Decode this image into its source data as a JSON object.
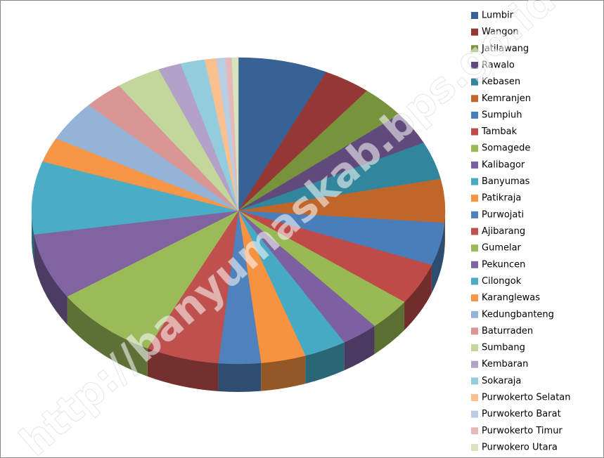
{
  "chart_data": {
    "type": "pie3d",
    "categories": [
      "Lumbir",
      "Wangon",
      "Jatilawang",
      "Rawalo",
      "Kebasen",
      "Kemranjen",
      "Sumpiuh",
      "Tambak",
      "Somagede",
      "Kalibagor",
      "Banyumas",
      "Patikraja",
      "Purwojati",
      "Ajibarang",
      "Gumelar",
      "Pekuncen",
      "Cilongok",
      "Karanglewas",
      "Kedungbanteng",
      "Baturraden",
      "Sumbang",
      "Kembaran",
      "Sokaraja",
      "Purwokerto Selatan",
      "Purwokerto Barat",
      "Purwokerto Timur",
      "Purwokero Utara"
    ],
    "values": [
      7.0,
      3.7,
      3.5,
      3.5,
      4.0,
      4.6,
      4.5,
      4.4,
      3.4,
      2.9,
      3.3,
      3.5,
      3.3,
      5.7,
      8.3,
      7.0,
      7.7,
      2.6,
      4.3,
      3.1,
      3.5,
      1.8,
      1.9,
      0.9,
      0.7,
      0.5,
      0.5
    ],
    "colors": [
      "#386296",
      "#953735",
      "#77933c",
      "#604a7b",
      "#31859c",
      "#c0662a",
      "#4a7ebb",
      "#be4b48",
      "#98b954",
      "#7d60a0",
      "#46aac5",
      "#f69240",
      "#4f81bd",
      "#c0504d",
      "#9bbb59",
      "#8064a2",
      "#4bacc6",
      "#f79646",
      "#95b3d7",
      "#d99694",
      "#c3d69b",
      "#b3a2c7",
      "#93cddd",
      "#fac090",
      "#b9cde5",
      "#e6b9b8",
      "#d7e4bd"
    ],
    "legend": "right",
    "watermark": "http://banyumaskab.bps.go.id"
  }
}
